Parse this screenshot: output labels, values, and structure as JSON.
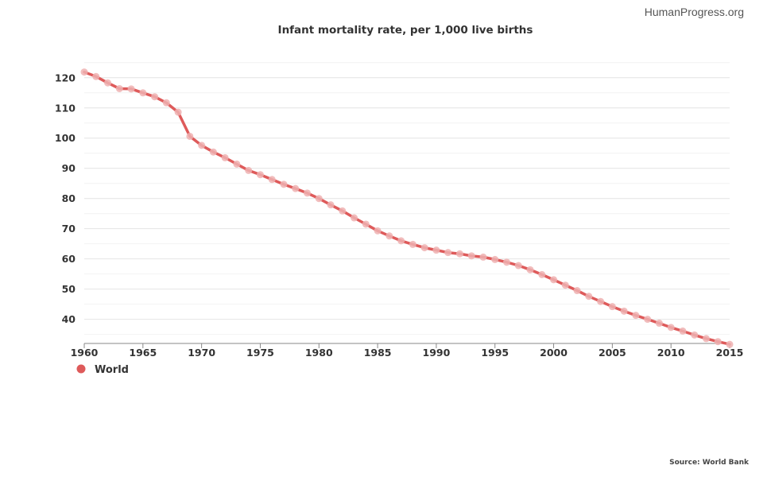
{
  "watermark": "HumanProgress.org",
  "source": "Source: World Bank",
  "colors": {
    "series": "#de5a5a",
    "marker": "#efb1b1",
    "grid": "#e4e4e4",
    "axis": "#888888"
  },
  "chart_data": {
    "type": "line",
    "title": "Infant mortality rate, per 1,000 live births",
    "xlabel": "",
    "ylabel": "",
    "xlim": [
      1960,
      2015
    ],
    "ylim": [
      32,
      126
    ],
    "x_ticks": [
      1960,
      1965,
      1970,
      1975,
      1980,
      1985,
      1990,
      1995,
      2000,
      2005,
      2010,
      2015
    ],
    "y_ticks": [
      40,
      50,
      60,
      70,
      80,
      90,
      100,
      110,
      120
    ],
    "legend": {
      "position": "bottom-left",
      "entries": [
        "World"
      ]
    },
    "x": [
      1960,
      1961,
      1962,
      1963,
      1964,
      1965,
      1966,
      1967,
      1968,
      1969,
      1970,
      1971,
      1972,
      1973,
      1974,
      1975,
      1976,
      1977,
      1978,
      1979,
      1980,
      1981,
      1982,
      1983,
      1984,
      1985,
      1986,
      1987,
      1988,
      1989,
      1990,
      1991,
      1992,
      1993,
      1994,
      1995,
      1996,
      1997,
      1998,
      1999,
      2000,
      2001,
      2002,
      2003,
      2004,
      2005,
      2006,
      2007,
      2008,
      2009,
      2010,
      2011,
      2012,
      2013,
      2014,
      2015
    ],
    "series": [
      {
        "name": "World",
        "values": [
          121.9,
          120.4,
          118.3,
          116.4,
          116.3,
          115.0,
          113.7,
          111.7,
          108.6,
          100.6,
          97.6,
          95.4,
          93.5,
          91.4,
          89.3,
          87.9,
          86.3,
          84.7,
          83.3,
          81.8,
          80.0,
          77.9,
          75.9,
          73.6,
          71.5,
          69.3,
          67.6,
          66.0,
          64.8,
          63.7,
          62.9,
          62.1,
          61.7,
          61.0,
          60.6,
          59.8,
          58.9,
          57.8,
          56.4,
          54.8,
          53.1,
          51.3,
          49.5,
          47.6,
          45.9,
          44.2,
          42.7,
          41.3,
          40.0,
          38.7,
          37.3,
          36.1,
          34.8,
          33.6,
          32.6,
          31.7
        ]
      }
    ]
  }
}
